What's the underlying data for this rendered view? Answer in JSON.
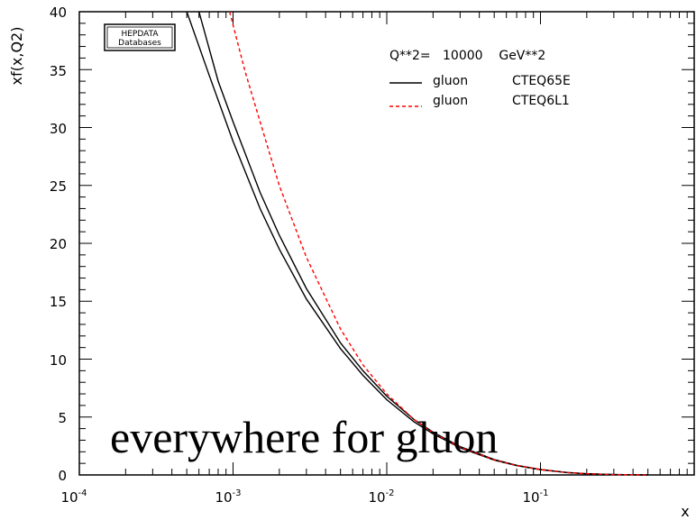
{
  "chart_data": {
    "type": "line",
    "ylabel": "xf(x,Q2)",
    "xlabel": "x",
    "xscale": "log",
    "xlim": [
      0.0001,
      1.0
    ],
    "ylim": [
      0,
      40
    ],
    "grid": false,
    "x_ticks": [
      {
        "base": "10",
        "exp": "-4",
        "value": 0.0001
      },
      {
        "base": "10",
        "exp": "-3",
        "value": 0.001
      },
      {
        "base": "10",
        "exp": "-2",
        "value": 0.01
      },
      {
        "base": "10",
        "exp": "-1",
        "value": 0.1
      }
    ],
    "y_ticks": [
      "0",
      "5",
      "10",
      "15",
      "20",
      "25",
      "30",
      "35",
      "40"
    ],
    "legend_header": "Q**2=   10000    GeV**2",
    "legend_placement": "top-right",
    "series": [
      {
        "name": "gluon     CTEQ65E",
        "label_parton": "gluon",
        "label_set": "CTEQ65E",
        "color": "#000000",
        "style": "solid",
        "x": [
          0.0005,
          0.0007,
          0.001,
          0.0015,
          0.002,
          0.003,
          0.005,
          0.007,
          0.01,
          0.015,
          0.02,
          0.03,
          0.05,
          0.07,
          0.1,
          0.15,
          0.2,
          0.3,
          0.5
        ],
        "y": [
          40.0,
          34.5,
          28.8,
          23.0,
          19.5,
          15.2,
          10.9,
          8.6,
          6.5,
          4.6,
          3.55,
          2.35,
          1.28,
          0.8,
          0.45,
          0.2,
          0.1,
          0.03,
          0.0
        ]
      },
      {
        "name": "gluon     CTEQ65E",
        "label_parton": "gluon",
        "label_set": "CTEQ65E",
        "color": "#000000",
        "style": "solid",
        "x": [
          0.0006,
          0.0008,
          0.001,
          0.0015,
          0.002,
          0.003,
          0.005,
          0.007,
          0.01,
          0.015,
          0.02,
          0.03,
          0.05,
          0.07,
          0.1,
          0.15,
          0.2,
          0.3,
          0.5
        ],
        "y": [
          40.0,
          34.0,
          30.5,
          24.4,
          20.7,
          16.1,
          11.4,
          9.0,
          6.8,
          4.8,
          3.7,
          2.45,
          1.33,
          0.83,
          0.47,
          0.21,
          0.1,
          0.03,
          0.0
        ]
      },
      {
        "name": "gluon     CTEQ6L1",
        "label_parton": "gluon",
        "label_set": "CTEQ6L1",
        "color": "#ff0000",
        "style": "dashed",
        "x": [
          0.00095,
          0.0012,
          0.0015,
          0.002,
          0.003,
          0.005,
          0.007,
          0.01,
          0.015,
          0.02,
          0.03,
          0.05,
          0.07,
          0.1,
          0.15,
          0.2,
          0.3,
          0.5
        ],
        "y": [
          40.0,
          34.8,
          30.5,
          25.0,
          18.8,
          12.6,
          9.5,
          7.0,
          4.8,
          3.65,
          2.4,
          1.3,
          0.82,
          0.47,
          0.2,
          0.1,
          0.03,
          0.0
        ]
      }
    ]
  },
  "logo": {
    "line1": "HEPDATA",
    "line2": "Databases"
  },
  "overlay_text": "everywhere for gluon"
}
